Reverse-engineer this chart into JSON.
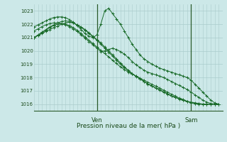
{
  "xlabel": "Pression niveau de la mer( hPa )",
  "bg_color": "#cce8e8",
  "grid_color": "#aacccc",
  "line_color": "#1a6b2a",
  "ylim": [
    1015.5,
    1023.5
  ],
  "xlim": [
    0,
    48
  ],
  "ven_x": 16,
  "sam_x": 40,
  "yticks": [
    1016,
    1017,
    1018,
    1019,
    1020,
    1021,
    1022,
    1023
  ],
  "series": [
    [
      1021.0,
      1021.15,
      1021.3,
      1021.45,
      1021.6,
      1021.75,
      1021.85,
      1022.0,
      1022.1,
      1022.15,
      1022.1,
      1021.95,
      1021.8,
      1021.6,
      1021.35,
      1021.1,
      1020.85,
      1020.6,
      1020.3,
      1020.0,
      1019.7,
      1019.4,
      1019.1,
      1018.8,
      1018.55,
      1018.3,
      1018.1,
      1017.9,
      1017.7,
      1017.5,
      1017.35,
      1017.2,
      1017.05,
      1016.9,
      1016.75,
      1016.6,
      1016.5,
      1016.4,
      1016.3,
      1016.2,
      1016.15,
      1016.1,
      1016.05,
      1016.0,
      1016.0,
      1016.0,
      1016.0,
      1016.0
    ],
    [
      1021.0,
      1021.2,
      1021.4,
      1021.6,
      1021.8,
      1021.95,
      1022.1,
      1022.2,
      1022.25,
      1022.2,
      1022.1,
      1021.95,
      1021.75,
      1021.55,
      1021.3,
      1021.05,
      1020.8,
      1020.5,
      1020.2,
      1019.9,
      1019.6,
      1019.3,
      1019.0,
      1018.75,
      1018.5,
      1018.28,
      1018.08,
      1017.88,
      1017.7,
      1017.52,
      1017.38,
      1017.22,
      1017.08,
      1016.92,
      1016.78,
      1016.62,
      1016.5,
      1016.38,
      1016.28,
      1016.18,
      1016.1,
      1016.05,
      1016.02,
      1016.0,
      1016.0,
      1016.0,
      1016.0,
      1016.0
    ],
    [
      1021.8,
      1021.95,
      1022.1,
      1022.25,
      1022.4,
      1022.5,
      1022.55,
      1022.55,
      1022.5,
      1022.35,
      1022.15,
      1021.9,
      1021.6,
      1021.3,
      1021.1,
      1021.0,
      1021.2,
      1022.0,
      1023.0,
      1023.2,
      1022.8,
      1022.4,
      1022.0,
      1021.5,
      1021.0,
      1020.5,
      1020.1,
      1019.7,
      1019.4,
      1019.2,
      1019.0,
      1018.85,
      1018.7,
      1018.6,
      1018.5,
      1018.4,
      1018.3,
      1018.2,
      1018.1,
      1018.0,
      1017.8,
      1017.5,
      1017.2,
      1016.9,
      1016.6,
      1016.3,
      1016.1,
      1016.0
    ],
    [
      1021.0,
      1021.15,
      1021.35,
      1021.55,
      1021.75,
      1021.9,
      1022.0,
      1022.05,
      1022.0,
      1021.9,
      1021.75,
      1021.55,
      1021.3,
      1021.05,
      1020.8,
      1020.55,
      1020.3,
      1020.05,
      1019.8,
      1019.55,
      1019.3,
      1019.05,
      1018.8,
      1018.6,
      1018.4,
      1018.25,
      1018.1,
      1017.95,
      1017.8,
      1017.65,
      1017.5,
      1017.35,
      1017.2,
      1017.05,
      1016.9,
      1016.75,
      1016.6,
      1016.45,
      1016.35,
      1016.22,
      1016.12,
      1016.05,
      1016.0,
      1016.0,
      1016.0,
      1016.0,
      1016.0,
      1016.0
    ],
    [
      1021.5,
      1021.65,
      1021.82,
      1021.95,
      1022.05,
      1022.1,
      1022.1,
      1022.05,
      1021.95,
      1021.82,
      1021.65,
      1021.45,
      1021.2,
      1020.95,
      1020.7,
      1020.45,
      1020.2,
      1019.95,
      1020.0,
      1020.1,
      1020.2,
      1020.1,
      1019.95,
      1019.75,
      1019.5,
      1019.2,
      1018.95,
      1018.75,
      1018.55,
      1018.4,
      1018.3,
      1018.2,
      1018.1,
      1018.0,
      1017.85,
      1017.7,
      1017.55,
      1017.4,
      1017.25,
      1017.1,
      1016.9,
      1016.7,
      1016.5,
      1016.3,
      1016.15,
      1016.05,
      1016.0,
      1016.0
    ]
  ],
  "n_points": 48
}
